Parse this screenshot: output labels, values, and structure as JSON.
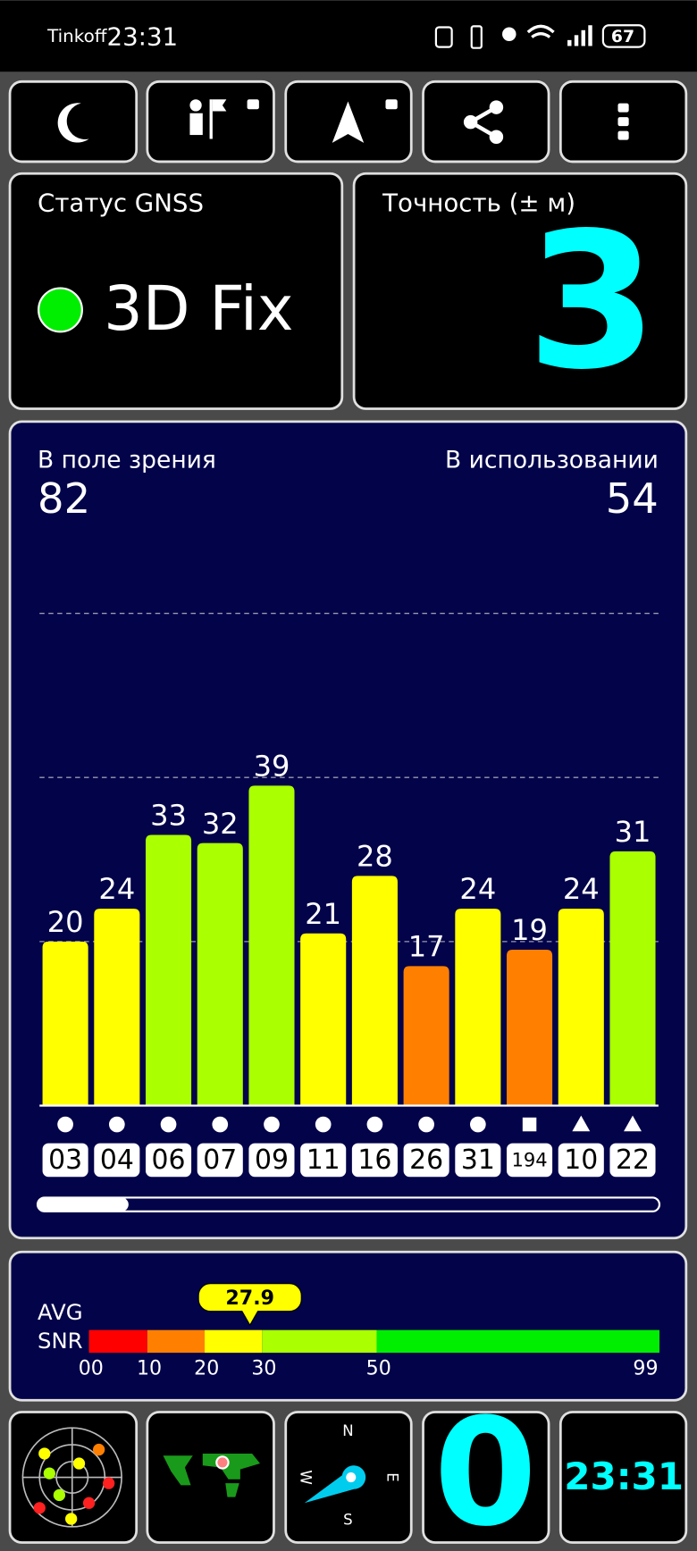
{
  "status_bar": {
    "carrier": "Tinkoff",
    "time": "23:31",
    "battery": 67
  },
  "gnss_status": {
    "title": "Статус GNSS",
    "value": "3D Fix"
  },
  "accuracy": {
    "title": "Точность (± м)",
    "value": 3
  },
  "satellites": {
    "in_view_label": "В поле зрения",
    "in_view": 82,
    "in_use_label": "В использовании",
    "in_use": 54,
    "chart_data": {
      "type": "bar",
      "categories": [
        "03",
        "04",
        "06",
        "07",
        "09",
        "11",
        "16",
        "26",
        "31",
        "194",
        "10",
        "22"
      ],
      "values": [
        20,
        24,
        33,
        32,
        39,
        21,
        28,
        17,
        24,
        19,
        24,
        31
      ],
      "colors": [
        "#ffff00",
        "#ffff00",
        "#aaff00",
        "#aaff00",
        "#aaff00",
        "#ffff00",
        "#ffff00",
        "#ff8000",
        "#ffff00",
        "#ff8000",
        "#ffff00",
        "#aaff00"
      ],
      "shapes": [
        "circle",
        "circle",
        "circle",
        "circle",
        "circle",
        "circle",
        "circle",
        "circle",
        "circle",
        "square",
        "triangle",
        "triangle"
      ],
      "ylim": [
        0,
        60
      ],
      "yticks": [
        20,
        40,
        60
      ],
      "grid": true
    }
  },
  "snr": {
    "label_top": "AVG",
    "label_bottom": "SNR",
    "chart_data": {
      "type": "gauge",
      "value": 27.9,
      "ticks": [
        {
          "value": 0,
          "label": "00"
        },
        10,
        20,
        30,
        50,
        99
      ],
      "segment_colors": [
        "#ff0000",
        "#ff8000",
        "#ffff00",
        "#aaff00",
        "#00ee00"
      ]
    }
  },
  "bottom": {
    "compass": {
      "n": "N",
      "e": "E",
      "s": "S",
      "w": "W"
    },
    "count": 0,
    "clock": "23:31"
  }
}
